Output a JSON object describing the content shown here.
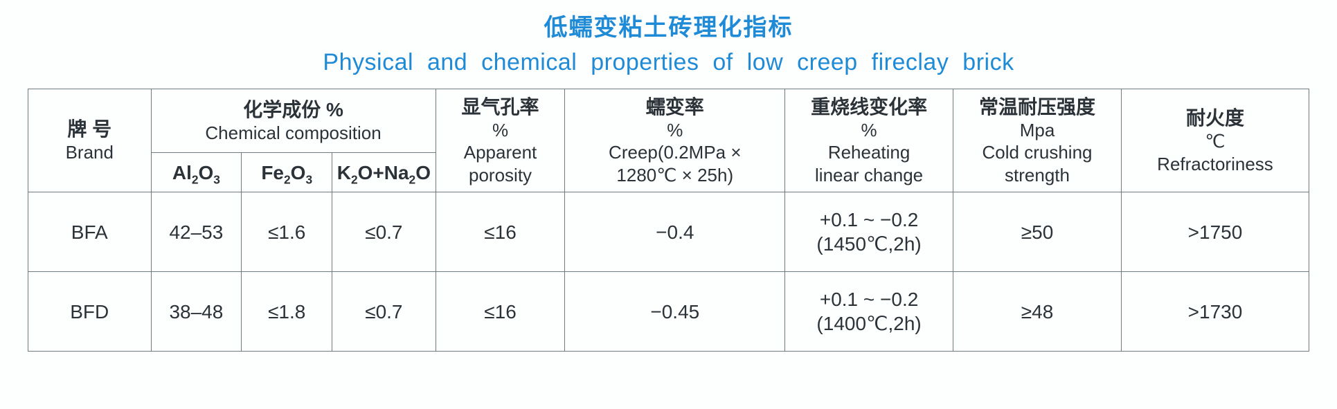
{
  "title": {
    "cn": "低蠕变粘土砖理化指标",
    "en": "Physical  and  chemical  properties  of  low  creep  fireclay  brick"
  },
  "colors": {
    "title_color": "#1f8bd6",
    "text_color": "#2b3238",
    "border_color": "#6f7a7e",
    "background_color": "#fdfefe"
  },
  "typography": {
    "title_fontsize_pt": 26,
    "header_fontsize_pt": 21,
    "cell_fontsize_pt": 22,
    "font_family": "Helvetica / Microsoft YaHei"
  },
  "table": {
    "type": "table",
    "column_widths_pct": [
      9.5,
      7,
      7,
      8,
      10,
      17,
      13,
      13,
      14.5
    ],
    "headers": {
      "brand": {
        "cn": "牌  号",
        "cn_spacing": "wide",
        "en": "Brand"
      },
      "chem_group": {
        "cn": "化学成份  %",
        "en": "Chemical  composition"
      },
      "al2o3": {
        "formula": "Al2O3",
        "display": "Al₂O₃"
      },
      "fe2o3": {
        "formula": "Fe2O3",
        "display": "Fe₂O₃"
      },
      "k2o_na2o": {
        "formula": "K2O+Na2O",
        "display": "K₂O+Na₂O"
      },
      "porosity": {
        "cn": "显气孔率",
        "unit": "%",
        "en1": "Apparent",
        "en2": "porosity"
      },
      "creep": {
        "cn": "蠕变率",
        "unit": "%",
        "en1": "Creep(0.2MPa ×",
        "en2": "1280℃ × 25h)"
      },
      "reheating": {
        "cn": "重烧线变化率",
        "unit": "%",
        "en1": "Reheating",
        "en2": "linear  change"
      },
      "ccs": {
        "cn": "常温耐压强度",
        "unit": "Mpa",
        "en1": "Cold crushing",
        "en2": "strength"
      },
      "refractoriness": {
        "cn": "耐火度",
        "unit": "℃",
        "en": "Refractoriness"
      }
    },
    "rows": [
      {
        "brand": "BFA",
        "al2o3": "42–53",
        "fe2o3": "≤1.6",
        "k2o_na2o": "≤0.7",
        "porosity": "≤16",
        "creep": "−0.4",
        "reheating_line1": "+0.1 ~ −0.2",
        "reheating_line2": "(1450℃,2h)",
        "ccs": "≥50",
        "refractoriness": ">1750"
      },
      {
        "brand": "BFD",
        "al2o3": "38–48",
        "fe2o3": "≤1.8",
        "k2o_na2o": "≤0.7",
        "porosity": "≤16",
        "creep": "−0.45",
        "reheating_line1": "+0.1 ~ −0.2",
        "reheating_line2": "(1400℃,2h)",
        "ccs": "≥48",
        "refractoriness": ">1730"
      }
    ]
  }
}
